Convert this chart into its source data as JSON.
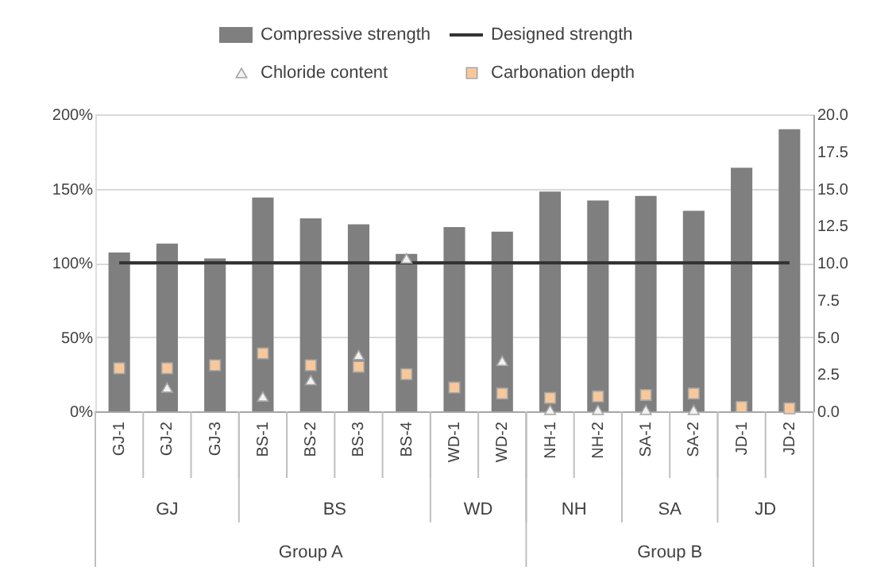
{
  "chart_data": {
    "type": "bar",
    "categories": [
      "GJ-1",
      "GJ-2",
      "GJ-3",
      "BS-1",
      "BS-2",
      "BS-3",
      "BS-4",
      "WD-1",
      "WD-2",
      "NH-1",
      "NH-2",
      "SA-1",
      "SA-2",
      "JD-1",
      "JD-2"
    ],
    "series": [
      {
        "name": "Compressive strength",
        "color": "#7f7f7f",
        "values": [
          107,
          113,
          103,
          144,
          130,
          126,
          106,
          124,
          121,
          148,
          142,
          145,
          135,
          164,
          190
        ]
      },
      {
        "name": "Designed strength",
        "type": "line",
        "color": "#333333",
        "line_style": "solid",
        "marker": "none",
        "values": [
          100,
          100,
          100,
          100,
          100,
          100,
          100,
          100,
          100,
          100,
          100,
          100,
          100,
          100,
          100
        ]
      },
      {
        "name": "Chloride content",
        "type": "scatter",
        "axis": "y2",
        "marker": "triangle",
        "color": "#f2f2f2",
        "values": [
          null,
          1.6,
          null,
          1.0,
          2.1,
          3.8,
          10.3,
          null,
          3.4,
          0.1,
          0.1,
          0.1,
          0.1,
          null,
          null
        ]
      },
      {
        "name": "Carbonation depth",
        "type": "scatter",
        "axis": "y2",
        "marker": "square",
        "color": "#f8c89a",
        "values": [
          2.9,
          2.9,
          3.1,
          3.9,
          3.1,
          3.0,
          2.5,
          1.6,
          1.2,
          0.9,
          1.0,
          1.1,
          1.2,
          0.3,
          0.2
        ]
      }
    ],
    "ylim": [
      0,
      200
    ],
    "yticks": [
      {
        "value": 0,
        "label": "0%"
      },
      {
        "value": 50,
        "label": "50%"
      },
      {
        "value": 100,
        "label": "100%"
      },
      {
        "value": 150,
        "label": "150%"
      },
      {
        "value": 200,
        "label": "200%"
      }
    ],
    "y2lim": [
      0,
      20
    ],
    "y2ticks": [
      {
        "value": 0,
        "label": "0.0"
      },
      {
        "value": 2.5,
        "label": "2.5"
      },
      {
        "value": 5,
        "label": "5.0"
      },
      {
        "value": 7.5,
        "label": "7.5"
      },
      {
        "value": 10,
        "label": "10.0"
      },
      {
        "value": 12.5,
        "label": "12.5"
      },
      {
        "value": 15,
        "label": "15.0"
      },
      {
        "value": 17.5,
        "label": "17.5"
      },
      {
        "value": 20,
        "label": "20.0"
      }
    ],
    "grid": "y",
    "legend": "top",
    "annotations": [
      "GJ",
      "BS",
      "WD",
      "NH",
      "SA",
      "JD",
      "Group A",
      "Group B"
    ]
  }
}
